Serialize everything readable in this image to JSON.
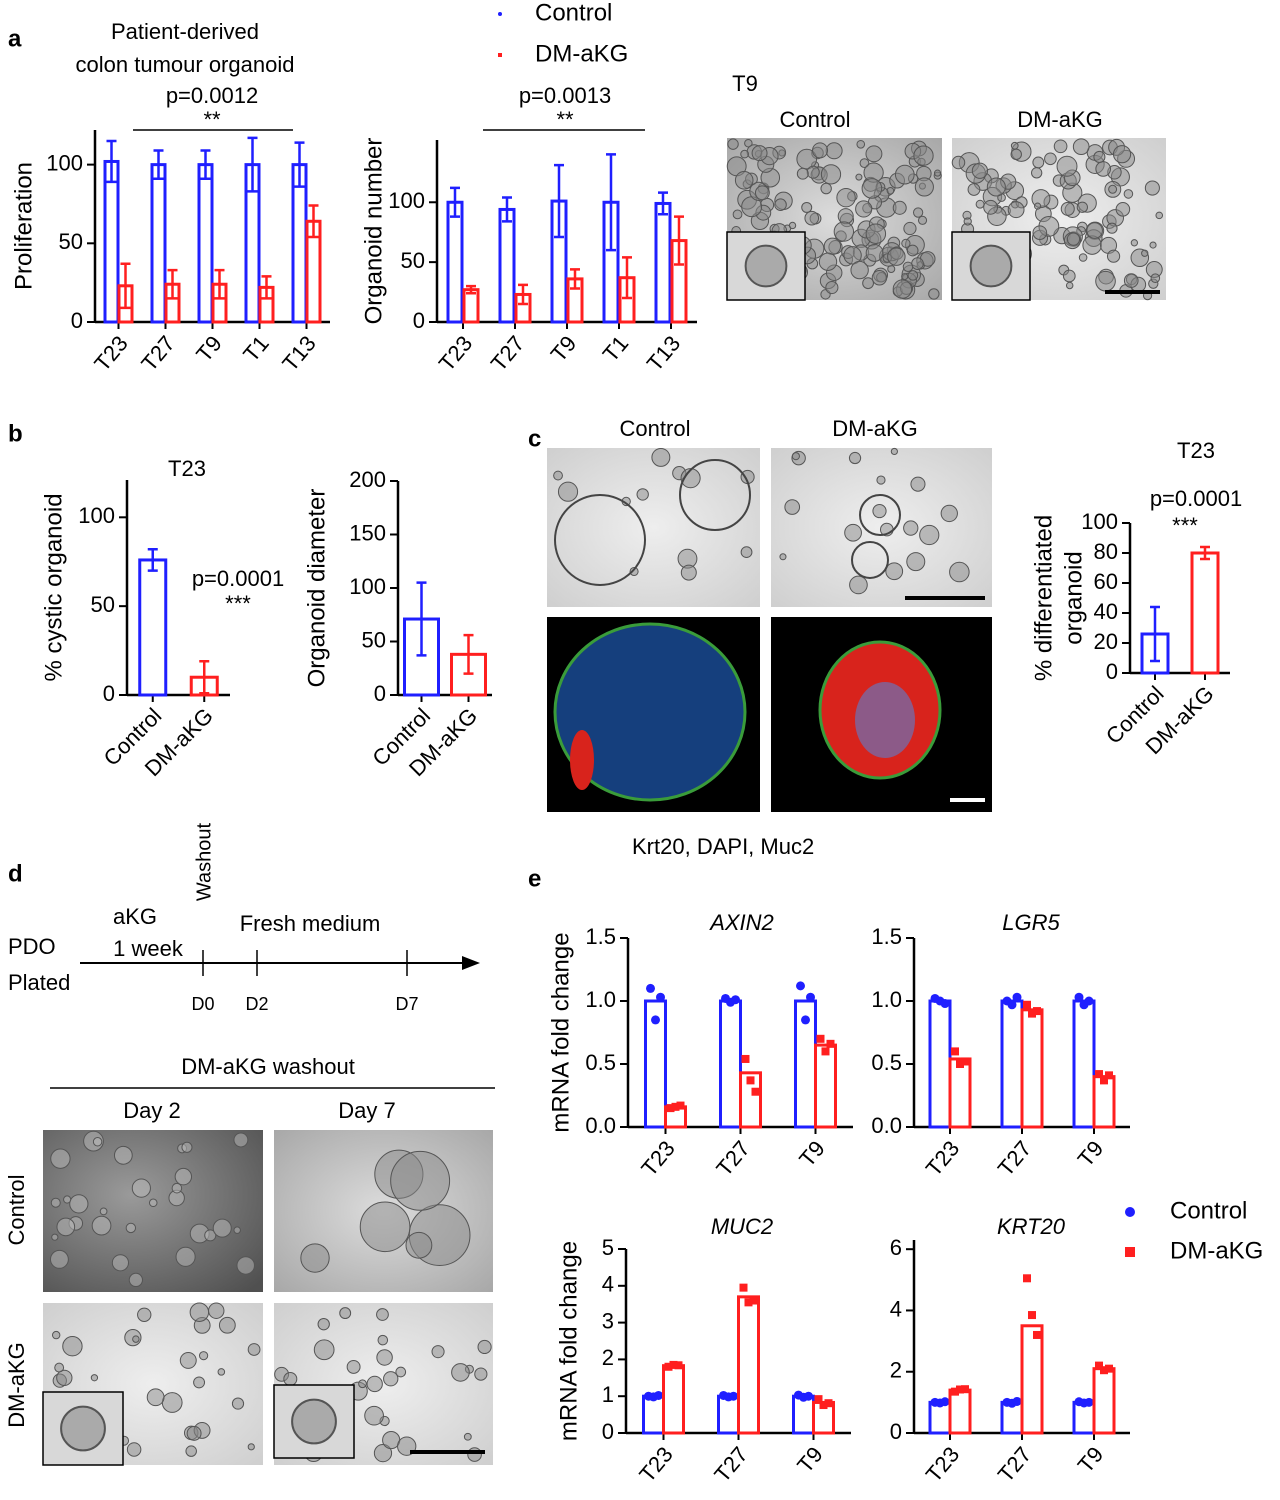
{
  "chart_data": [
    {
      "type": "bar",
      "title": [
        "Patient-derived",
        "colon tumour organoid"
      ],
      "ylabel": "Proliferation",
      "categories": [
        "T23",
        "T27",
        "T9",
        "T1",
        "T13"
      ],
      "series": [
        {
          "color": "#1f1fff",
          "values": [
            102,
            100,
            100,
            100,
            100
          ],
          "errors": [
            13,
            9,
            9,
            17,
            14
          ]
        },
        {
          "color": "#ff1f1f",
          "values": [
            23,
            24,
            24,
            22,
            64
          ],
          "errors": [
            14,
            9,
            9,
            7,
            10
          ]
        }
      ],
      "ylim": [
        0,
        122
      ],
      "yticks": [
        0,
        50,
        100
      ],
      "pvalue": "p=0.0012",
      "significance": "**"
    },
    {
      "type": "bar",
      "ylabel": "Organoid number",
      "legend": true,
      "categories": [
        "T23",
        "T27",
        "T9",
        "T1",
        "T13"
      ],
      "series": [
        {
          "name": "Control",
          "color": "#1f1fff",
          "values": [
            100,
            94,
            101,
            100,
            99
          ],
          "errors": [
            12,
            10,
            30,
            40,
            9
          ]
        },
        {
          "name": "DM-aKG",
          "color": "#ff1f1f",
          "values": [
            27,
            23,
            36,
            37,
            68
          ],
          "errors": [
            3,
            8,
            8,
            17,
            20
          ]
        }
      ],
      "ylim": [
        0,
        152
      ],
      "yticks": [
        0,
        50,
        100
      ],
      "pvalue": "p=0.0013",
      "significance": "**"
    },
    {
      "type": "bar",
      "title": "T23",
      "ylabel": "% cystic organoid",
      "categories": [
        "Control",
        "DM-aKG"
      ],
      "values": [
        76,
        10
      ],
      "errors": [
        6,
        9
      ],
      "colors": [
        "#1f1fff",
        "#ff1f1f"
      ],
      "ylim": [
        0,
        121
      ],
      "yticks": [
        0,
        50,
        100
      ],
      "pvalue": "p=0.0001",
      "significance": "***"
    },
    {
      "type": "bar",
      "ylabel": "Organoid diameter",
      "categories": [
        "Control",
        "DM-aKG"
      ],
      "values": [
        71,
        38
      ],
      "errors": [
        34,
        18
      ],
      "colors": [
        "#1f1fff",
        "#ff1f1f"
      ],
      "ylim": [
        0,
        200
      ],
      "yticks": [
        0,
        50,
        100,
        150,
        200
      ]
    },
    {
      "type": "bar",
      "title": "T23",
      "ylabel": [
        "% differentiated",
        "organoid"
      ],
      "categories": [
        "Control",
        "DM-aKG"
      ],
      "values": [
        26,
        80
      ],
      "errors": [
        18,
        4
      ],
      "colors": [
        "#1f1fff",
        "#ff1f1f"
      ],
      "ylim": [
        0,
        100
      ],
      "yticks": [
        0,
        20,
        40,
        60,
        80,
        100
      ],
      "pvalue": "p=0.0001",
      "significance": "***"
    },
    {
      "type": "bar",
      "title": "AXIN2",
      "ylabel": "mRNA fold change",
      "categories": [
        "T23",
        "T27",
        "T9"
      ],
      "series": [
        {
          "color": "#1f1fff",
          "values": [
            1,
            1,
            1
          ],
          "points": [
            [
              1.1,
              0.85,
              1.03
            ],
            [
              1.02,
              0.99,
              1.01
            ],
            [
              1.12,
              0.85,
              1.03
            ]
          ]
        },
        {
          "color": "#ff1f1f",
          "values": [
            0.16,
            0.43,
            0.65
          ],
          "points": [
            [
              0.15,
              0.16,
              0.17
            ],
            [
              0.54,
              0.37,
              0.28
            ],
            [
              0.7,
              0.6,
              0.66
            ]
          ]
        }
      ],
      "ylim": [
        0,
        1.5
      ],
      "yticks": [
        {
          "value": 0,
          "label": "0.0"
        },
        0.5,
        {
          "value": 1,
          "label": "1.0"
        },
        1.5
      ]
    },
    {
      "type": "bar",
      "title": "LGR5",
      "categories": [
        "T23",
        "T27",
        "T9"
      ],
      "series": [
        {
          "color": "#1f1fff",
          "values": [
            1,
            1,
            1
          ],
          "points": [
            [
              1.02,
              1.0,
              0.98
            ],
            [
              1.0,
              0.97,
              1.03
            ],
            [
              1.03,
              0.97,
              1.0
            ]
          ]
        },
        {
          "color": "#ff1f1f",
          "values": [
            0.54,
            0.93,
            0.4
          ],
          "points": [
            [
              0.6,
              0.5,
              0.52
            ],
            [
              0.97,
              0.9,
              0.92
            ],
            [
              0.42,
              0.37,
              0.41
            ]
          ]
        }
      ],
      "ylim": [
        0,
        1.5
      ],
      "yticks": [
        {
          "value": 0,
          "label": "0.0"
        },
        0.5,
        {
          "value": 1,
          "label": "1.0"
        },
        1.5
      ]
    },
    {
      "type": "bar",
      "title": "MUC2",
      "ylabel": "mRNA fold change",
      "legend": true,
      "categories": [
        "T23",
        "T27",
        "T9"
      ],
      "series": [
        {
          "name": "Control",
          "color": "#1f1fff",
          "values": [
            1,
            1,
            1
          ],
          "points": [
            [
              1.0,
              0.98,
              1.02
            ],
            [
              1.02,
              0.98,
              1.0
            ],
            [
              1.03,
              0.97,
              1.0
            ]
          ]
        },
        {
          "name": "DM-aKG",
          "color": "#ff1f1f",
          "values": [
            1.83,
            3.7,
            0.83
          ],
          "points": [
            [
              1.8,
              1.85,
              1.84
            ],
            [
              3.95,
              3.55,
              3.6
            ],
            [
              0.92,
              0.76,
              0.81
            ]
          ]
        }
      ],
      "ylim": [
        0,
        5
      ],
      "yticks": [
        0,
        1,
        2,
        3,
        4,
        5
      ]
    },
    {
      "type": "bar",
      "title": "KRT20",
      "categories": [
        "T23",
        "T27",
        "T9"
      ],
      "series": [
        {
          "color": "#1f1fff",
          "values": [
            1,
            1,
            1
          ],
          "points": [
            [
              1.0,
              0.98,
              1.02
            ],
            [
              1.0,
              0.97,
              1.03
            ],
            [
              1.02,
              0.98,
              1.0
            ]
          ]
        },
        {
          "color": "#ff1f1f",
          "values": [
            1.4,
            3.5,
            2.1
          ],
          "points": [
            [
              1.35,
              1.42,
              1.43
            ],
            [
              5.05,
              3.85,
              3.2
            ],
            [
              2.2,
              2.05,
              2.1
            ]
          ]
        }
      ],
      "ylim": [
        0,
        6.3
      ],
      "yticks": [
        0,
        2,
        4,
        6
      ]
    }
  ],
  "panels": [
    "a",
    "b",
    "c",
    "d",
    "e"
  ],
  "panel_a_images": {
    "title": "T9",
    "labels": [
      "Control",
      "DM-aKG"
    ]
  },
  "panel_c_images": {
    "labels": [
      "Control",
      "DM-aKG"
    ],
    "stain_legend": [
      {
        "text": "Krt20",
        "color": "#e8261c"
      },
      {
        "text": ", ",
        "color": "#000000"
      },
      {
        "text": "DAPI, ",
        "color": "#1a6fc4"
      },
      {
        "text": "Muc2",
        "color": "#5aaa3a"
      }
    ]
  },
  "timeline": {
    "start": [
      "PDO",
      "Plated"
    ],
    "treatment": [
      "aKG",
      "1 week"
    ],
    "washout": "Washout",
    "medium": "Fresh medium",
    "days": [
      "D0",
      "D2",
      "D7"
    ]
  },
  "washout_images": {
    "title": "DM-aKG washout",
    "columns": [
      "Day 2",
      "Day 7"
    ],
    "rows": [
      "Control",
      "DM-aKG"
    ]
  }
}
